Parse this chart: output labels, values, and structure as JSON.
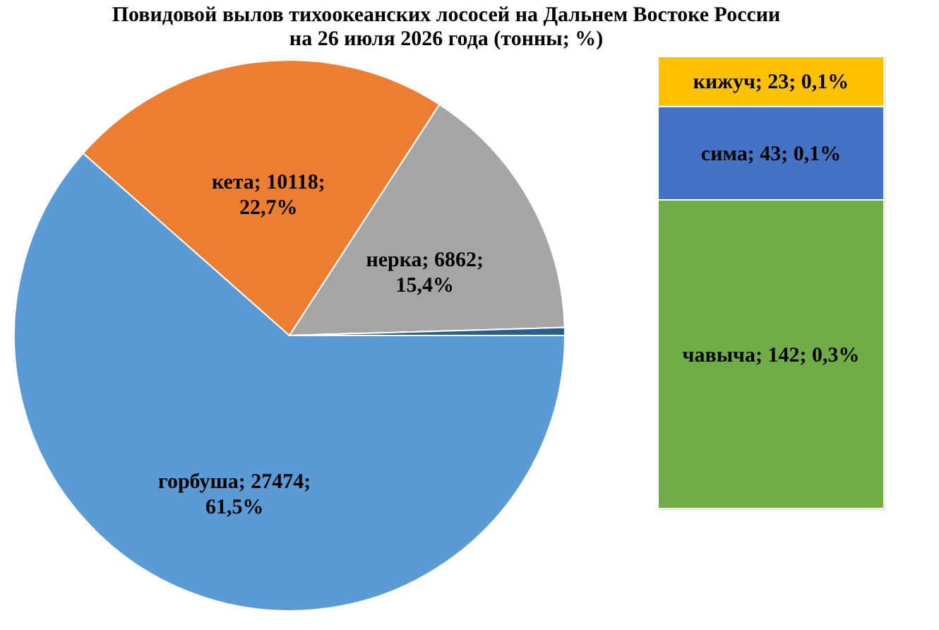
{
  "chart_data": [
    {
      "type": "pie",
      "title": [
        "Повидовой вылов тихоокеанских лососей на Дальнем Востоке России",
        "на 26 июля 2026 года (тонны; %)"
      ],
      "categories": [
        "горбуша",
        "кета",
        "нерка",
        null
      ],
      "values": [
        27474,
        10118,
        6862,
        208
      ],
      "colors": [
        "#5b9bd5",
        "#ed7d31",
        "#a5a5a5",
        "#255e91"
      ],
      "value_labels": [
        "27474; 61,5%",
        "10118; 22,7%",
        "6862; 15,4%",
        null
      ]
    },
    {
      "type": "bar",
      "stacked": true,
      "categories": [
        null
      ],
      "series": [
        {
          "color": "#70ad47",
          "values": [
            142
          ],
          "value_labels": [
            "чавыча; 142; 0,3%"
          ]
        },
        {
          "color": "#4472c4",
          "values": [
            43
          ],
          "value_labels": [
            "сима; 43; 0,1%"
          ]
        },
        {
          "color": "#ffc000",
          "values": [
            23
          ],
          "value_labels": [
            "кижуч; 23; 0,1%"
          ]
        }
      ]
    }
  ]
}
